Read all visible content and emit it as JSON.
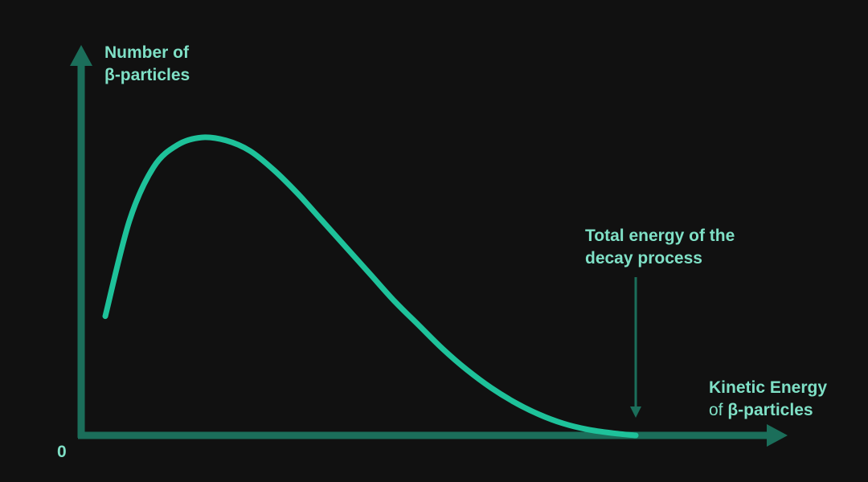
{
  "chart_data": {
    "type": "line",
    "ylabel_lines": [
      "Number of",
      "β-particles"
    ],
    "xlabel_line1": "Kinetic Energy",
    "xlabel_line2_prefix": "of ",
    "xlabel_line2_main": "β-particles",
    "origin_label": "0",
    "annotation": {
      "lines": [
        "Total energy of the",
        "decay process"
      ],
      "x": 0.92
    },
    "curve": {
      "x": [
        0.04,
        0.08,
        0.12,
        0.16,
        0.2,
        0.24,
        0.28,
        0.32,
        0.36,
        0.4,
        0.44,
        0.48,
        0.52,
        0.56,
        0.6,
        0.64,
        0.68,
        0.72,
        0.76,
        0.8,
        0.84,
        0.88,
        0.92
      ],
      "y": [
        0.4,
        0.72,
        0.9,
        0.975,
        1.0,
        0.99,
        0.955,
        0.89,
        0.81,
        0.72,
        0.63,
        0.54,
        0.45,
        0.37,
        0.29,
        0.22,
        0.16,
        0.11,
        0.07,
        0.04,
        0.02,
        0.008,
        0.0
      ]
    },
    "xlim": [
      0,
      1
    ],
    "ylim": [
      0,
      1.1
    ],
    "grid": false,
    "colors": {
      "background": "#111111",
      "axis": "#1b6e5a",
      "curve": "#1ec29a",
      "text": "#7fe0c6",
      "annotation_arrow": "#1b6e5a"
    }
  }
}
